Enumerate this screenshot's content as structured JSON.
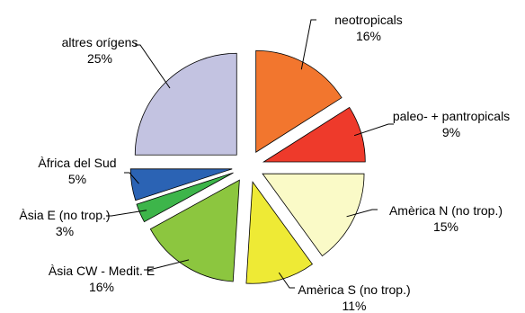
{
  "chart_data": {
    "type": "pie",
    "title": "",
    "slices": [
      {
        "label": "neotropicals",
        "value": 16,
        "value_label": "16%",
        "color": "#f2762e"
      },
      {
        "label": "paleo- + pantropicals",
        "value": 9,
        "value_label": "9%",
        "color": "#ee3a2b"
      },
      {
        "label": "Amèrica N (no trop.)",
        "value": 15,
        "value_label": "15%",
        "color": "#fafac7"
      },
      {
        "label": "Amèrica S (no trop.)",
        "value": 11,
        "value_label": "11%",
        "color": "#eeea35"
      },
      {
        "label": "Àsia CW - Medit. E",
        "value": 16,
        "value_label": "16%",
        "color": "#8cc63f"
      },
      {
        "label": "Àsia E (no trop.)",
        "value": 3,
        "value_label": "3%",
        "color": "#3db54a"
      },
      {
        "label": "Àfrica del Sud",
        "value": 5,
        "value_label": "5%",
        "color": "#2b63b4"
      },
      {
        "label": "altres orígens",
        "value": 25,
        "value_label": "25%",
        "color": "#c3c3e1"
      }
    ],
    "legend": "none"
  }
}
